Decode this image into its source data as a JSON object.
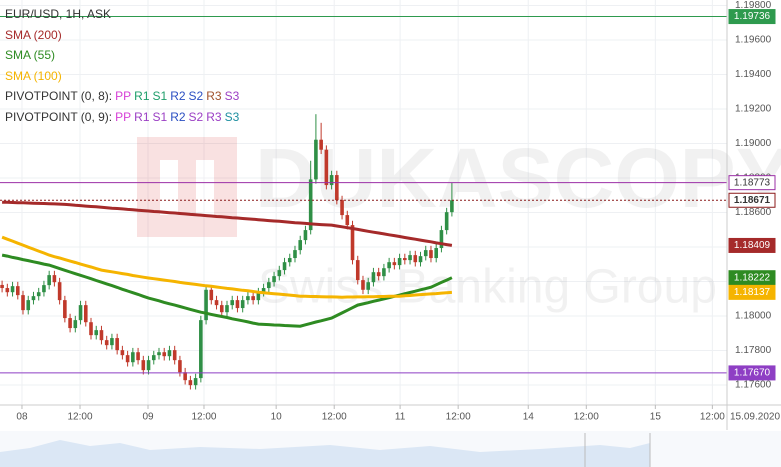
{
  "chart_data": {
    "type": "candlestick",
    "title": "EUR/USD, 1H, ASK",
    "watermark": {
      "title": "DUKASCOPY",
      "subtitle": "Swiss Banking Group"
    },
    "up_color": "#2f8f46",
    "down_color": "#c0392b",
    "grid": true,
    "xlim": [
      -0.4,
      138.6
    ],
    "xticks": [
      {
        "value": 3.8,
        "label": "08"
      },
      {
        "value": 14.9,
        "label": "12:00"
      },
      {
        "value": 27.9,
        "label": "09"
      },
      {
        "value": 38.6,
        "label": "12:00"
      },
      {
        "value": 52.4,
        "label": "10"
      },
      {
        "value": 63.5,
        "label": "12:00"
      },
      {
        "value": 76.1,
        "label": "11"
      },
      {
        "value": 87.2,
        "label": "12:00"
      },
      {
        "value": 100.6,
        "label": "14"
      },
      {
        "value": 111.7,
        "label": "12:00"
      },
      {
        "value": 124.9,
        "label": "15"
      },
      {
        "value": 135.8,
        "label": "12:00"
      }
    ],
    "date_label": "15.09.2020",
    "ylim": [
      1.17484,
      1.19832
    ],
    "yticks": [
      {
        "value": 1.176,
        "label": "1.17600"
      },
      {
        "value": 1.178,
        "label": "1.17800"
      },
      {
        "value": 1.18,
        "label": "1.18000"
      },
      {
        "value": 1.182,
        "label": "1.18200"
      },
      {
        "value": 1.184,
        "label": "1.18400"
      },
      {
        "value": 1.186,
        "label": "1.18600"
      },
      {
        "value": 1.188,
        "label": "1.18800"
      },
      {
        "value": 1.19,
        "label": "1.19000"
      },
      {
        "value": 1.192,
        "label": "1.19200"
      },
      {
        "value": 1.194,
        "label": "1.19400"
      },
      {
        "value": 1.196,
        "label": "1.19600"
      },
      {
        "value": 1.198,
        "label": "1.19800"
      }
    ],
    "open": [
      1.1818,
      1.18162,
      1.18138,
      1.18173,
      1.18121,
      1.18034,
      1.18092,
      1.18115,
      1.18138,
      1.18179,
      1.18237,
      1.18196,
      1.18092,
      1.17988,
      1.1793,
      1.17976,
      1.18063,
      1.17964,
      1.17889,
      1.17918,
      1.1786,
      1.17831,
      1.17872,
      1.17802,
      1.17773,
      1.17732,
      1.1779,
      1.17744,
      1.17686,
      1.17744,
      1.17773,
      1.1779,
      1.17767,
      1.17802,
      1.17744,
      1.17674,
      1.17628,
      1.17599,
      1.1764,
      1.17976,
      1.18152,
      1.18092,
      1.18063,
      1.18022,
      1.18063,
      1.18092,
      1.18046,
      1.18092,
      1.18115,
      1.18092,
      1.18138,
      1.18162,
      1.18196,
      1.18231,
      1.18266,
      1.18312,
      1.18336,
      1.18382,
      1.1844,
      1.18498,
      1.18792,
      1.19022,
      1.18964,
      1.18759,
      1.18817,
      1.18672,
      1.18585,
      1.18527,
      1.18324,
      1.18208,
      1.18152,
      1.18196,
      1.18254,
      1.18231,
      1.18277,
      1.18312,
      1.18295,
      1.18336,
      1.18324,
      1.18353,
      1.18312,
      1.18347,
      1.18382,
      1.18336,
      1.18394,
      1.18498,
      1.18602
    ],
    "high": [
      1.18205,
      1.18187,
      1.18198,
      1.18198,
      1.18146,
      1.18117,
      1.1814,
      1.18163,
      1.18204,
      1.18262,
      1.18262,
      1.18221,
      1.18117,
      1.18013,
      1.18001,
      1.18088,
      1.18088,
      1.17989,
      1.17943,
      1.17943,
      1.17885,
      1.17897,
      1.17897,
      1.17827,
      1.17798,
      1.17815,
      1.17815,
      1.17769,
      1.17769,
      1.17798,
      1.17815,
      1.17815,
      1.17827,
      1.17827,
      1.17769,
      1.17699,
      1.17653,
      1.17665,
      1.18001,
      1.18177,
      1.18177,
      1.18117,
      1.18088,
      1.18088,
      1.18117,
      1.18117,
      1.18117,
      1.1814,
      1.1814,
      1.18163,
      1.18187,
      1.18221,
      1.18256,
      1.18291,
      1.18337,
      1.18361,
      1.18407,
      1.18465,
      1.18523,
      1.189,
      1.1917,
      1.1912,
      1.18989,
      1.18842,
      1.18842,
      1.18697,
      1.1861,
      1.18552,
      1.18349,
      1.18233,
      1.18221,
      1.18279,
      1.18279,
      1.18302,
      1.18337,
      1.18337,
      1.18361,
      1.18361,
      1.18378,
      1.18378,
      1.18372,
      1.18407,
      1.18407,
      1.18419,
      1.18523,
      1.18627,
      1.18773
    ],
    "low": [
      1.18137,
      1.18113,
      1.18113,
      1.18096,
      1.18009,
      1.18009,
      1.18067,
      1.1809,
      1.18113,
      1.18154,
      1.18171,
      1.18067,
      1.17963,
      1.17905,
      1.17905,
      1.17951,
      1.17939,
      1.17864,
      1.17864,
      1.17835,
      1.17806,
      1.17806,
      1.17777,
      1.17748,
      1.17707,
      1.17707,
      1.17719,
      1.17661,
      1.17661,
      1.17719,
      1.17748,
      1.17742,
      1.17742,
      1.17719,
      1.17649,
      1.17603,
      1.17574,
      1.17574,
      1.17615,
      1.17951,
      1.18067,
      1.18038,
      1.17997,
      1.17997,
      1.18038,
      1.18021,
      1.18021,
      1.18067,
      1.18067,
      1.18067,
      1.18113,
      1.18137,
      1.18171,
      1.18206,
      1.18241,
      1.18287,
      1.18311,
      1.18357,
      1.18415,
      1.18473,
      1.18767,
      1.18939,
      1.18734,
      1.18734,
      1.18647,
      1.1856,
      1.18502,
      1.18299,
      1.18183,
      1.18127,
      1.18127,
      1.18171,
      1.18206,
      1.18206,
      1.18252,
      1.1827,
      1.1827,
      1.18299,
      1.18299,
      1.18287,
      1.18287,
      1.18322,
      1.18311,
      1.18311,
      1.18369,
      1.18473,
      1.18577
    ],
    "close": [
      1.18162,
      1.18138,
      1.18173,
      1.18121,
      1.18034,
      1.18092,
      1.18115,
      1.18138,
      1.18179,
      1.18237,
      1.18196,
      1.18092,
      1.17988,
      1.1793,
      1.17976,
      1.18063,
      1.17964,
      1.17889,
      1.17918,
      1.1786,
      1.17831,
      1.17872,
      1.17802,
      1.17773,
      1.17732,
      1.1779,
      1.17744,
      1.17686,
      1.17744,
      1.17773,
      1.1779,
      1.17767,
      1.17802,
      1.17744,
      1.17674,
      1.17628,
      1.17599,
      1.1764,
      1.17976,
      1.18152,
      1.18092,
      1.18063,
      1.18022,
      1.18063,
      1.18092,
      1.18046,
      1.18092,
      1.18115,
      1.18092,
      1.18138,
      1.18162,
      1.18196,
      1.18231,
      1.18266,
      1.18312,
      1.18336,
      1.18382,
      1.1844,
      1.18498,
      1.18792,
      1.19022,
      1.18964,
      1.18759,
      1.18817,
      1.18672,
      1.18585,
      1.18527,
      1.18324,
      1.18208,
      1.18152,
      1.18196,
      1.18254,
      1.18231,
      1.18277,
      1.18312,
      1.18295,
      1.18336,
      1.18324,
      1.18353,
      1.18312,
      1.18347,
      1.18382,
      1.18336,
      1.18394,
      1.18498,
      1.18602,
      1.18671
    ],
    "series": [
      {
        "name": "SMA (200)",
        "color": "#a52a2a",
        "values": [
          1.1866,
          1.18659,
          1.18658,
          1.18657,
          1.18656,
          1.18655,
          1.18654,
          1.18653,
          1.18652,
          1.18651,
          1.1865,
          1.18649,
          1.18647,
          1.18645,
          1.18642,
          1.1864,
          1.18637,
          1.18635,
          1.18633,
          1.1863,
          1.18628,
          1.18625,
          1.18623,
          1.18621,
          1.18618,
          1.18616,
          1.18613,
          1.18611,
          1.18609,
          1.18606,
          1.18604,
          1.18601,
          1.18599,
          1.18597,
          1.18594,
          1.18592,
          1.18589,
          1.18587,
          1.18585,
          1.18582,
          1.1858,
          1.18577,
          1.18575,
          1.18573,
          1.1857,
          1.18568,
          1.18565,
          1.18563,
          1.18561,
          1.18558,
          1.18556,
          1.18553,
          1.18551,
          1.18549,
          1.18546,
          1.18544,
          1.18541,
          1.18539,
          1.18537,
          1.18534,
          1.18532,
          1.1853,
          1.18528,
          1.18527,
          1.18522,
          1.18517,
          1.18512,
          1.18507,
          1.18502,
          1.18496,
          1.18491,
          1.18486,
          1.18481,
          1.18476,
          1.18471,
          1.18466,
          1.18461,
          1.18455,
          1.1845,
          1.18445,
          1.1844,
          1.18435,
          1.1843,
          1.18424,
          1.18419,
          1.18414,
          1.18409
        ]
      },
      {
        "name": "SMA (55)",
        "color": "#2e8b22",
        "values": [
          1.18353,
          1.18347,
          1.1834,
          1.18334,
          1.18327,
          1.18321,
          1.18314,
          1.18308,
          1.18301,
          1.18295,
          1.18285,
          1.18275,
          1.18265,
          1.18255,
          1.18245,
          1.18236,
          1.18226,
          1.18216,
          1.18206,
          1.18196,
          1.18186,
          1.18176,
          1.18166,
          1.18155,
          1.18145,
          1.18135,
          1.18125,
          1.18114,
          1.18104,
          1.18096,
          1.18088,
          1.18079,
          1.18071,
          1.18063,
          1.18055,
          1.18047,
          1.18038,
          1.1803,
          1.18022,
          1.18016,
          1.18009,
          1.18003,
          1.17997,
          1.17991,
          1.17984,
          1.17978,
          1.17972,
          1.17966,
          1.17959,
          1.17953,
          1.17951,
          1.1795,
          1.17948,
          1.17947,
          1.17945,
          1.17944,
          1.17942,
          1.17941,
          1.17949,
          1.17957,
          1.17965,
          1.17972,
          1.1798,
          1.17988,
          1.18003,
          1.18018,
          1.18033,
          1.18048,
          1.18063,
          1.1807,
          1.18077,
          1.18085,
          1.18092,
          1.18099,
          1.18106,
          1.18114,
          1.18121,
          1.18129,
          1.18136,
          1.18144,
          1.18152,
          1.18159,
          1.18167,
          1.18181,
          1.18195,
          1.18208,
          1.18222
        ]
      },
      {
        "name": "SMA (100)",
        "color": "#f5b400",
        "values": [
          1.18457,
          1.18445,
          1.18434,
          1.18422,
          1.18411,
          1.18399,
          1.18388,
          1.18376,
          1.18365,
          1.18353,
          1.18344,
          1.18336,
          1.18327,
          1.18318,
          1.1831,
          1.18301,
          1.18292,
          1.18284,
          1.18275,
          1.18266,
          1.18261,
          1.18256,
          1.18251,
          1.18246,
          1.18241,
          1.18235,
          1.1823,
          1.18225,
          1.1822,
          1.18216,
          1.18212,
          1.18208,
          1.18204,
          1.182,
          1.18195,
          1.18191,
          1.18187,
          1.18183,
          1.18179,
          1.18175,
          1.18172,
          1.18168,
          1.18164,
          1.1816,
          1.18157,
          1.18153,
          1.18149,
          1.18146,
          1.18142,
          1.18138,
          1.18135,
          1.18132,
          1.18129,
          1.18127,
          1.18124,
          1.18121,
          1.18118,
          1.18115,
          1.18114,
          1.18113,
          1.18113,
          1.18112,
          1.18111,
          1.18111,
          1.1811,
          1.18109,
          1.1811,
          1.1811,
          1.18111,
          1.18111,
          1.18112,
          1.18112,
          1.18113,
          1.18113,
          1.18114,
          1.18114,
          1.18115,
          1.18117,
          1.18119,
          1.18122,
          1.18124,
          1.18126,
          1.18128,
          1.1813,
          1.18133,
          1.18135,
          1.18137
        ]
      }
    ],
    "pivots": [
      {
        "label": "PIVOTPOINT (0, 8):",
        "items": [
          {
            "name": "PP",
            "color": "#d63fd6"
          },
          {
            "name": "R1",
            "color": "#1e9e6a"
          },
          {
            "name": "S1",
            "color": "#1e9e6a"
          },
          {
            "name": "R2",
            "color": "#2b4fc2"
          },
          {
            "name": "S2",
            "color": "#2b4fc2"
          },
          {
            "name": "R3",
            "color": "#a0522d"
          },
          {
            "name": "S3",
            "color": "#9b3fc4"
          }
        ]
      },
      {
        "label": "PIVOTPOINT (0, 9):",
        "items": [
          {
            "name": "PP",
            "color": "#d63fd6"
          },
          {
            "name": "R1",
            "color": "#9b3fc4"
          },
          {
            "name": "S1",
            "color": "#9b3fc4"
          },
          {
            "name": "R2",
            "color": "#2b4fc2"
          },
          {
            "name": "S2",
            "color": "#9b3fc4"
          },
          {
            "name": "R3",
            "color": "#9b3fc4"
          },
          {
            "name": "S3",
            "color": "#1e8fa0"
          }
        ]
      }
    ],
    "levels": [
      {
        "value": 1.19736,
        "label": "1.19736",
        "color": "#2e9a4e",
        "line": true,
        "style": "filled"
      },
      {
        "value": 1.18773,
        "label": "1.18773",
        "color": "#9b2fa6",
        "line": true,
        "style": "outline"
      },
      {
        "value": 1.18671,
        "label": "1.18671",
        "color": "#8b1a1a",
        "line": true,
        "style": "current"
      },
      {
        "value": 1.18409,
        "label": "1.18409",
        "color": "#a52a2a",
        "line": false,
        "style": "filled"
      },
      {
        "value": 1.18222,
        "label": "1.18222",
        "color": "#2e8b22",
        "line": false,
        "style": "filled"
      },
      {
        "value": 1.18137,
        "label": "1.18137",
        "color": "#f5b400",
        "line": false,
        "style": "filled"
      },
      {
        "value": 1.1767,
        "label": "1.17670",
        "color": "#8e3fc4",
        "line": true,
        "style": "filled"
      }
    ]
  }
}
